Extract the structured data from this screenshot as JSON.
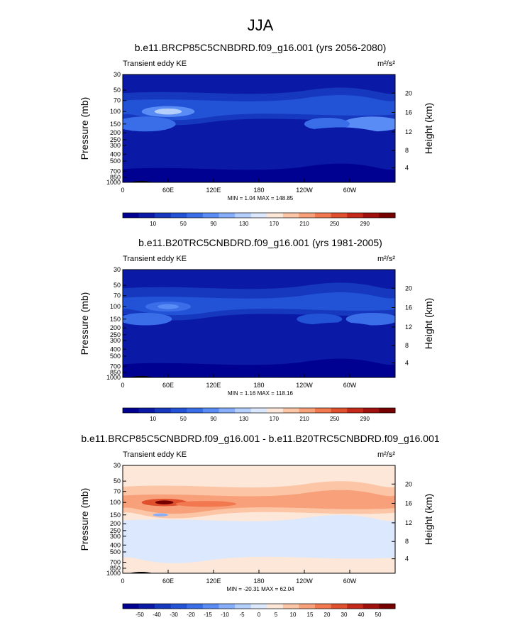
{
  "title": "JJA",
  "colors": {
    "frame": "#000000",
    "land": "#000000",
    "ke_scale": [
      "#000091",
      "#0a1aa6",
      "#1638be",
      "#2252d6",
      "#3a6ee8",
      "#5a8cf5",
      "#86aefa",
      "#b4cffc",
      "#dbe8fd",
      "#fde7d9",
      "#fbc5a6",
      "#f7a079",
      "#f1784f",
      "#e0502e",
      "#c4291a",
      "#a0100d",
      "#760000"
    ],
    "diff_scale": [
      "#000091",
      "#0a1aa6",
      "#1638be",
      "#2252d6",
      "#3a6ee8",
      "#5a8cf5",
      "#86aefa",
      "#b4cffc",
      "#dbe8fd",
      "#fde7d9",
      "#fbc5a6",
      "#f7a079",
      "#f1784f",
      "#e0502e",
      "#c4291a",
      "#a0100d",
      "#760000"
    ]
  },
  "chart_data": [
    {
      "type": "heatmap",
      "title": "b.e11.BRCP85C5CNBDRD.f09_g16.001 (yrs 2056-2080)",
      "left_label": "Transient eddy KE",
      "units": "m²/s²",
      "ylabel": "Pressure (mb)",
      "y2label": "Height (km)",
      "xticks": [
        "0",
        "60E",
        "120E",
        "180",
        "120W",
        "60W"
      ],
      "yticks": [
        "30",
        "50",
        "70",
        "100",
        "150",
        "200",
        "250",
        "300",
        "400",
        "500",
        "700",
        "850",
        "1000"
      ],
      "y2ticks": [
        "20",
        "16",
        "12",
        "8",
        "4"
      ],
      "stats": "MIN =   1.04  MAX = 148.85",
      "min": 1.04,
      "max": 148.85,
      "colorbar": {
        "labels": [
          "10",
          "50",
          "90",
          "130",
          "170",
          "210",
          "250",
          "290"
        ],
        "scale": "ke_scale"
      }
    },
    {
      "type": "heatmap",
      "title": "b.e11.B20TRC5CNBDRD.f09_g16.001 (yrs 1981-2005)",
      "left_label": "Transient eddy KE",
      "units": "m²/s²",
      "ylabel": "Pressure (mb)",
      "y2label": "Height (km)",
      "xticks": [
        "0",
        "60E",
        "120E",
        "180",
        "120W",
        "60W"
      ],
      "yticks": [
        "30",
        "50",
        "70",
        "100",
        "150",
        "200",
        "250",
        "300",
        "400",
        "500",
        "700",
        "850",
        "1000"
      ],
      "y2ticks": [
        "20",
        "16",
        "12",
        "8",
        "4"
      ],
      "stats": "MIN =   1.16  MAX = 118.16",
      "min": 1.16,
      "max": 118.16,
      "colorbar": {
        "labels": [
          "10",
          "50",
          "90",
          "130",
          "170",
          "210",
          "250",
          "290"
        ],
        "scale": "ke_scale"
      }
    },
    {
      "type": "heatmap",
      "title": "b.e11.BRCP85C5CNBDRD.f09_g16.001 - b.e11.B20TRC5CNBDRD.f09_g16.001",
      "left_label": "Transient eddy KE",
      "units": "m²/s²",
      "ylabel": "Pressure (mb)",
      "y2label": "Height (km)",
      "xticks": [
        "0",
        "60E",
        "120E",
        "180",
        "120W",
        "60W"
      ],
      "yticks": [
        "30",
        "50",
        "70",
        "100",
        "150",
        "200",
        "250",
        "300",
        "400",
        "500",
        "700",
        "850",
        "1000"
      ],
      "y2ticks": [
        "20",
        "16",
        "12",
        "8",
        "4"
      ],
      "stats": "MIN = -20.31  MAX =  62.04",
      "min": -20.31,
      "max": 62.04,
      "colorbar": {
        "labels": [
          "-50",
          "-40",
          "-30",
          "-20",
          "-15",
          "-10",
          "-5",
          "0",
          "5",
          "10",
          "15",
          "20",
          "30",
          "40",
          "50"
        ],
        "scale": "diff_scale"
      }
    }
  ]
}
